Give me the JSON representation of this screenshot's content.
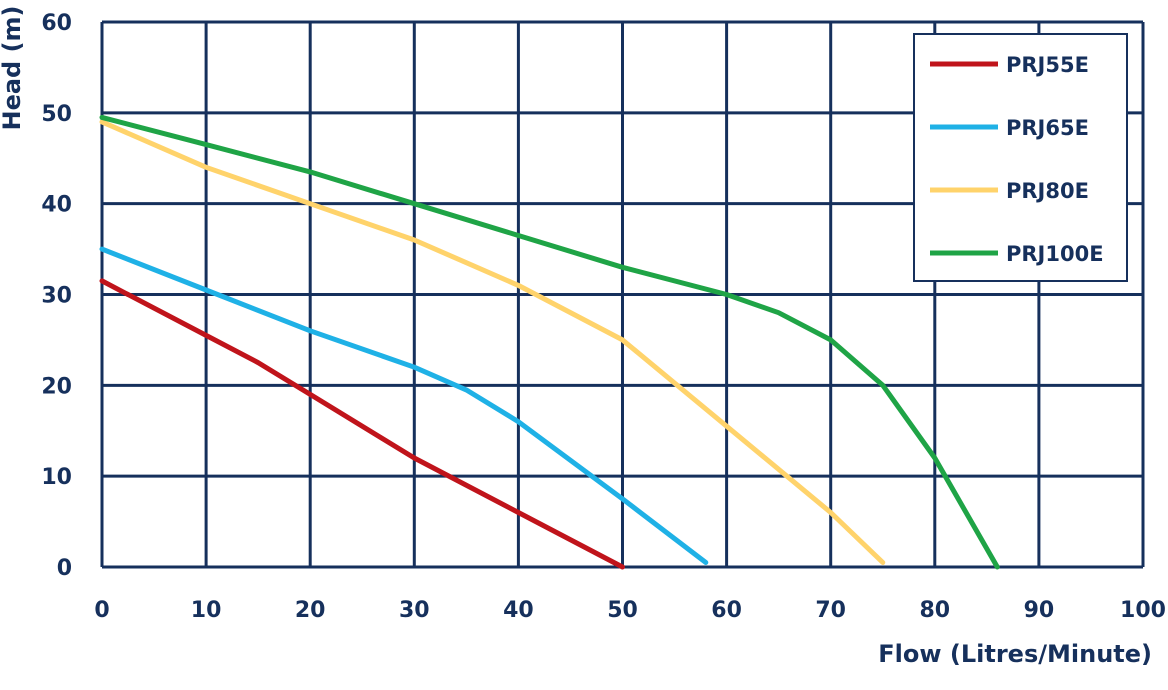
{
  "chart_data": {
    "type": "line",
    "xlabel": "Flow (Litres/Minute)",
    "ylabel": "Head (m)",
    "xlim": [
      0,
      100
    ],
    "ylim": [
      0,
      60
    ],
    "x_ticks": [
      "0",
      "10",
      "20",
      "30",
      "40",
      "50",
      "60",
      "70",
      "80",
      "90",
      "100"
    ],
    "y_ticks": [
      "0",
      "10",
      "20",
      "30",
      "40",
      "50",
      "60"
    ],
    "grid": true,
    "legend_position": "top-right",
    "colors": {
      "grid": "#16305c",
      "text": "#16305c"
    },
    "series": [
      {
        "name": "PRJ55E",
        "color": "#c0141b",
        "points": [
          [
            0,
            31.5
          ],
          [
            10,
            25.5
          ],
          [
            15,
            22.5
          ],
          [
            20,
            19
          ],
          [
            30,
            12
          ],
          [
            40,
            6
          ],
          [
            50,
            0
          ]
        ]
      },
      {
        "name": "PRJ65E",
        "color": "#1fb1e6",
        "points": [
          [
            0,
            35
          ],
          [
            10,
            30.5
          ],
          [
            20,
            26
          ],
          [
            30,
            22
          ],
          [
            35,
            19.5
          ],
          [
            40,
            16
          ],
          [
            50,
            7.5
          ],
          [
            58,
            0.5
          ]
        ]
      },
      {
        "name": "PRJ80E",
        "color": "#ffd36b",
        "points": [
          [
            0,
            49
          ],
          [
            10,
            44
          ],
          [
            20,
            40
          ],
          [
            30,
            36
          ],
          [
            40,
            31
          ],
          [
            50,
            25
          ],
          [
            60,
            15.5
          ],
          [
            70,
            6
          ],
          [
            75,
            0.5
          ]
        ]
      },
      {
        "name": "PRJ100E",
        "color": "#1fa446",
        "points": [
          [
            0,
            49.5
          ],
          [
            10,
            46.5
          ],
          [
            20,
            43.5
          ],
          [
            30,
            40
          ],
          [
            40,
            36.5
          ],
          [
            50,
            33
          ],
          [
            60,
            30
          ],
          [
            65,
            28
          ],
          [
            70,
            25
          ],
          [
            75,
            20
          ],
          [
            80,
            12
          ],
          [
            86,
            0
          ]
        ]
      }
    ]
  }
}
